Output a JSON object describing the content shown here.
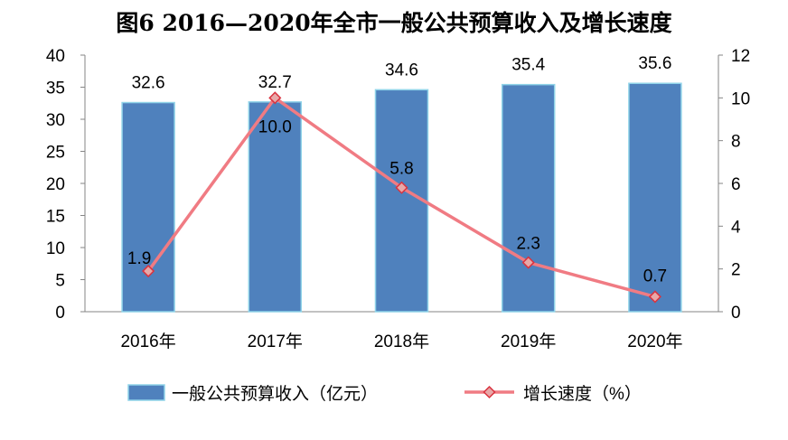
{
  "chart_data": {
    "type": "bar+line",
    "title": "图6  2016—2020年全市一般公共预算收入及增长速度",
    "categories": [
      "2016年",
      "2017年",
      "2018年",
      "2019年",
      "2020年"
    ],
    "series": [
      {
        "name": "一般公共预算收入（亿元）",
        "type": "bar",
        "axis": "left",
        "values": [
          32.6,
          32.7,
          34.6,
          35.4,
          35.6
        ],
        "labels": [
          "32.6",
          "32.7",
          "34.6",
          "35.4",
          "35.6"
        ],
        "color": "#4F81BD",
        "border_color": "#8FD3E8"
      },
      {
        "name": "增长速度（%）",
        "type": "line",
        "axis": "right",
        "values": [
          1.9,
          10.0,
          5.8,
          2.3,
          0.7
        ],
        "labels": [
          "1.9",
          "10.0",
          "5.8",
          "2.3",
          "0.7"
        ],
        "color": "#F07B83",
        "marker": "diamond"
      }
    ],
    "y_left": {
      "min": 0,
      "max": 40,
      "ticks": [
        "0",
        "5",
        "10",
        "15",
        "20",
        "25",
        "30",
        "35",
        "40"
      ]
    },
    "y_right": {
      "min": 0,
      "max": 12,
      "ticks": [
        "0",
        "2",
        "4",
        "6",
        "8",
        "10",
        "12"
      ]
    },
    "grid": false,
    "legend_position": "bottom"
  }
}
